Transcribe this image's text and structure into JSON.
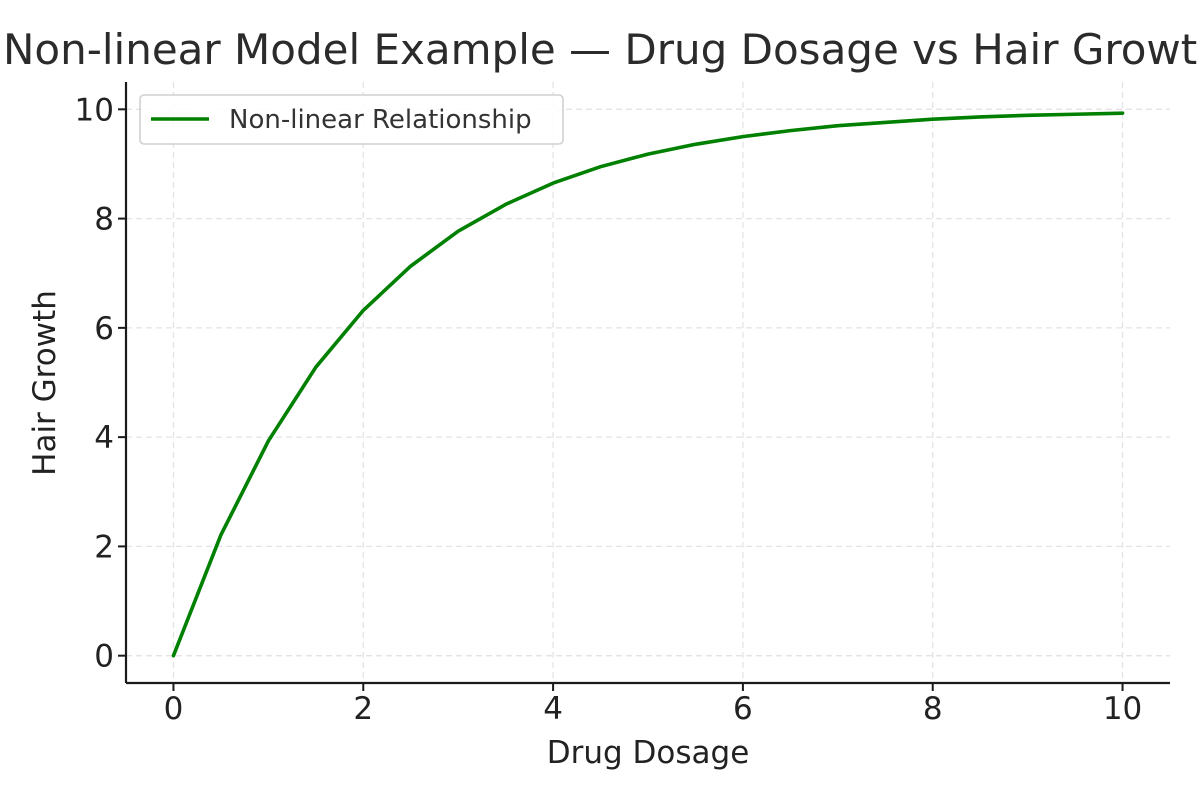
{
  "chart_data": {
    "type": "line",
    "title": "Non-linear Model Example — Drug Dosage vs Hair Growth",
    "xlabel": "Drug Dosage",
    "ylabel": "Hair Growth",
    "xlim": [
      -0.5,
      10.5
    ],
    "ylim": [
      -0.5,
      10.5
    ],
    "xticks": [
      0,
      2,
      4,
      6,
      8,
      10
    ],
    "yticks": [
      0,
      2,
      4,
      6,
      8,
      10
    ],
    "grid": true,
    "legend_position": "upper-left",
    "series": [
      {
        "name": "Non-linear Relationship",
        "color": "#008000",
        "x": [
          0,
          0.5,
          1,
          1.5,
          2,
          2.5,
          3,
          3.5,
          4,
          4.5,
          5,
          5.5,
          6,
          6.5,
          7,
          7.5,
          8,
          8.5,
          9,
          9.5,
          10
        ],
        "y": [
          0,
          2.21,
          3.93,
          5.28,
          6.32,
          7.13,
          7.77,
          8.26,
          8.65,
          8.95,
          9.18,
          9.36,
          9.5,
          9.61,
          9.7,
          9.76,
          9.82,
          9.86,
          9.89,
          9.91,
          9.93
        ]
      }
    ]
  }
}
